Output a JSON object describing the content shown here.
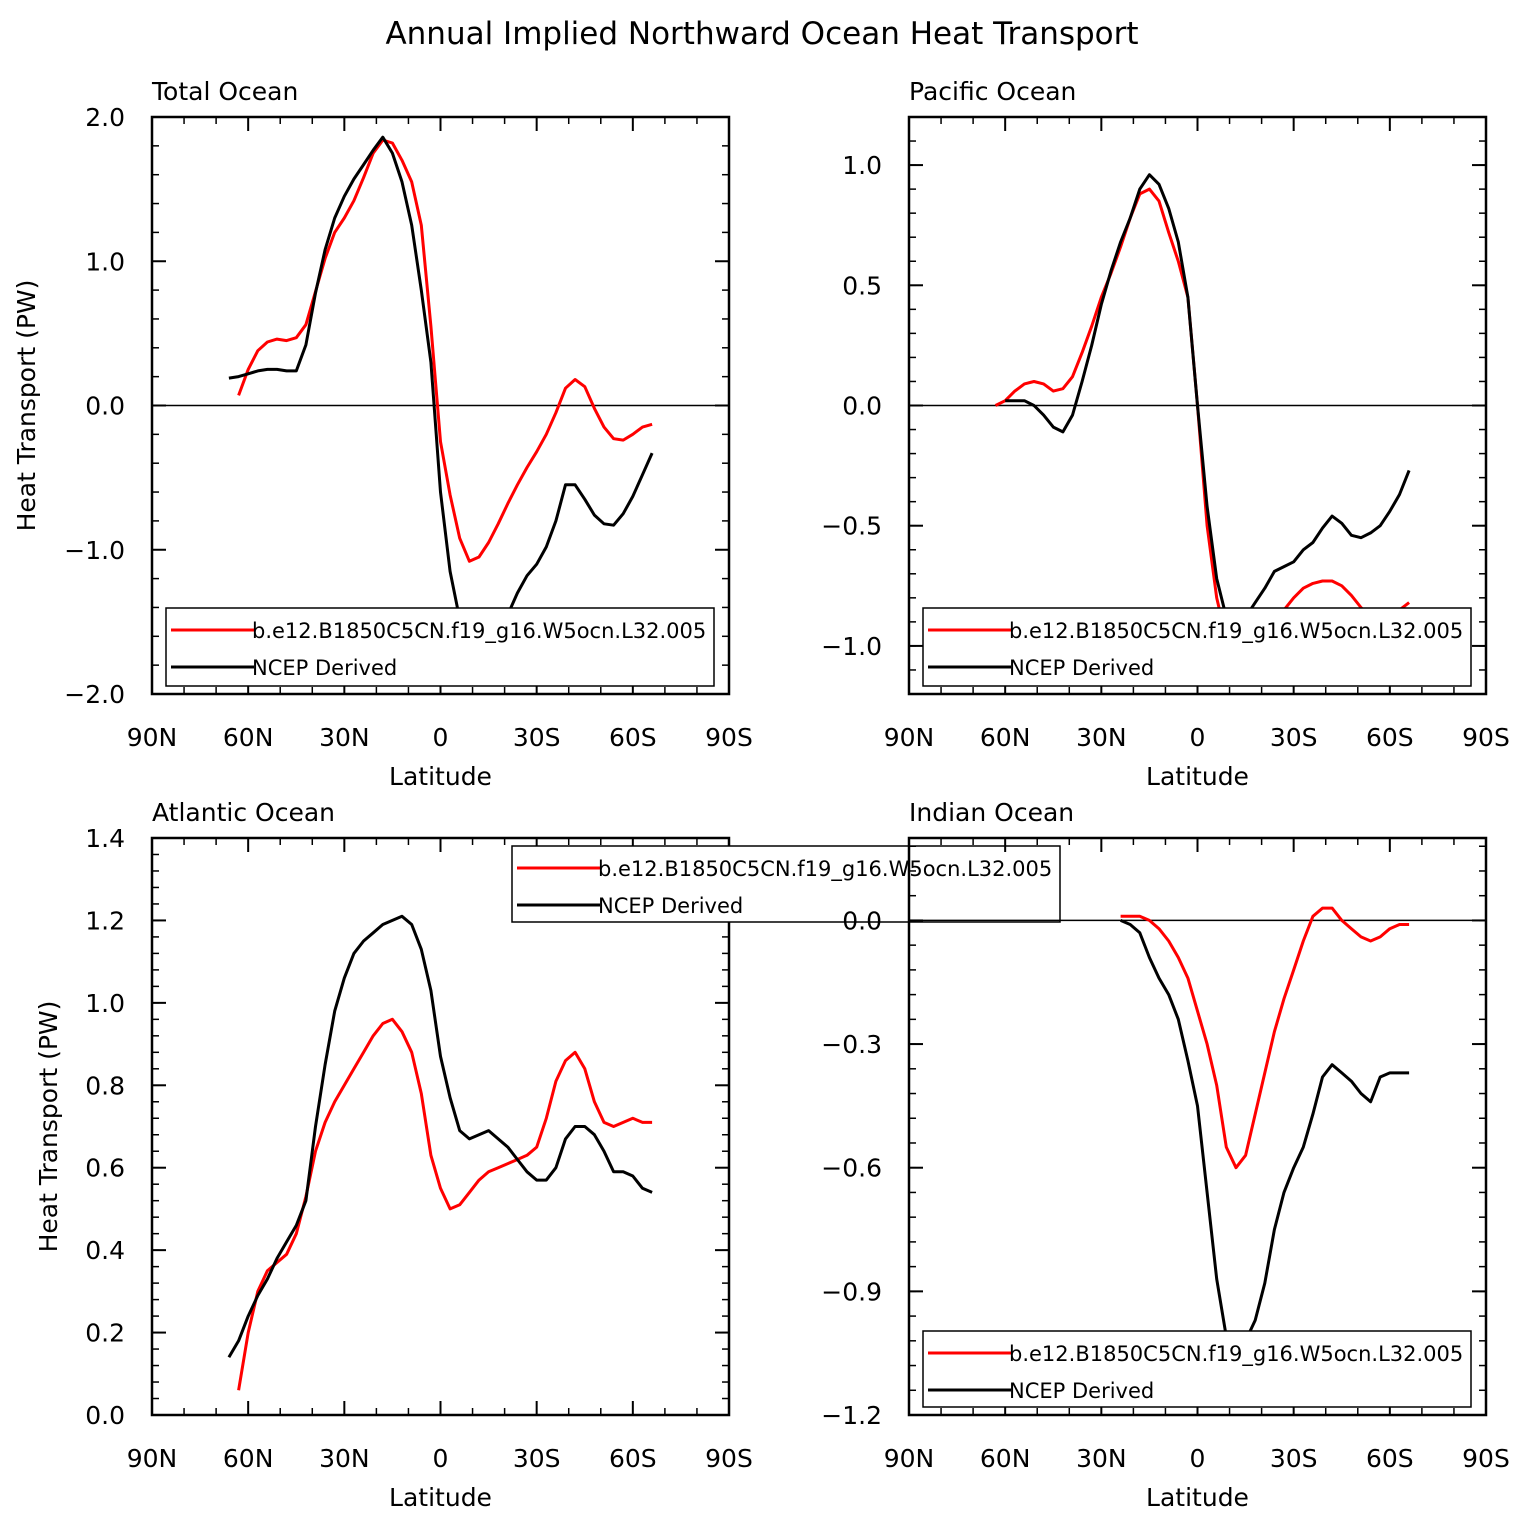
{
  "title": "Annual Implied Northward Ocean Heat Transport",
  "colors": {
    "model": "#ff0000",
    "obs": "#000000",
    "axis": "#000000",
    "background": "#ffffff"
  },
  "chart_data": [
    {
      "type": "line",
      "panel_title": "Total Ocean",
      "xlabel": "Latitude",
      "ylabel": "Heat Transport (PW)",
      "xlim": [
        90,
        -90
      ],
      "x_ticks": [
        90,
        60,
        30,
        0,
        -30,
        -60,
        -90
      ],
      "x_tick_labels": [
        "90N",
        "60N",
        "30N",
        "0",
        "30S",
        "60S",
        "90S"
      ],
      "ylim": [
        -2.0,
        2.0
      ],
      "y_ticks": [
        -2.0,
        -1.0,
        0.0,
        1.0,
        2.0
      ],
      "y_tick_labels": [
        "−2.0",
        "−1.0",
        "0.0",
        "1.0",
        "2.0"
      ],
      "zero_line": true,
      "legend_position": "bottom",
      "series": [
        {
          "name": "b.e12.B1850C5CN.f19_g16.W5ocn.L32.005",
          "color": "#ff0000",
          "x": [
            63,
            60,
            57,
            54,
            51,
            48,
            45,
            42,
            39,
            36,
            33,
            30,
            27,
            24,
            21,
            18,
            15,
            12,
            9,
            6,
            3,
            0,
            -3,
            -6,
            -9,
            -12,
            -15,
            -18,
            -21,
            -24,
            -27,
            -30,
            -33,
            -36,
            -39,
            -42,
            -45,
            -48,
            -51,
            -54,
            -57,
            -60,
            -63,
            -66
          ],
          "y": [
            0.07,
            0.25,
            0.38,
            0.44,
            0.46,
            0.45,
            0.47,
            0.56,
            0.79,
            1.02,
            1.2,
            1.3,
            1.42,
            1.58,
            1.75,
            1.84,
            1.82,
            1.7,
            1.55,
            1.25,
            0.55,
            -0.25,
            -0.62,
            -0.92,
            -1.08,
            -1.05,
            -0.95,
            -0.82,
            -0.68,
            -0.55,
            -0.43,
            -0.32,
            -0.2,
            -0.05,
            0.12,
            0.18,
            0.13,
            -0.02,
            -0.15,
            -0.23,
            -0.24,
            -0.2,
            -0.15,
            -0.13
          ]
        },
        {
          "name": "NCEP Derived",
          "color": "#000000",
          "x": [
            66,
            63,
            60,
            57,
            54,
            51,
            48,
            45,
            42,
            39,
            36,
            33,
            30,
            27,
            24,
            21,
            18,
            15,
            12,
            9,
            6,
            3,
            0,
            -3,
            -6,
            -9,
            -12,
            -15,
            -18,
            -21,
            -24,
            -27,
            -30,
            -33,
            -36,
            -39,
            -42,
            -45,
            -48,
            -51,
            -54,
            -57,
            -60,
            -63,
            -66
          ],
          "y": [
            0.19,
            0.2,
            0.22,
            0.24,
            0.25,
            0.25,
            0.24,
            0.24,
            0.42,
            0.78,
            1.08,
            1.3,
            1.45,
            1.57,
            1.67,
            1.77,
            1.86,
            1.75,
            1.55,
            1.25,
            0.8,
            0.3,
            -0.6,
            -1.15,
            -1.48,
            -1.64,
            -1.68,
            -1.62,
            -1.56,
            -1.45,
            -1.3,
            -1.18,
            -1.1,
            -0.98,
            -0.8,
            -0.55,
            -0.55,
            -0.65,
            -0.76,
            -0.82,
            -0.83,
            -0.75,
            -0.63,
            -0.48,
            -0.33
          ]
        }
      ]
    },
    {
      "type": "line",
      "panel_title": "Pacific Ocean",
      "xlabel": "Latitude",
      "ylabel": "",
      "xlim": [
        90,
        -90
      ],
      "x_ticks": [
        90,
        60,
        30,
        0,
        -30,
        -60,
        -90
      ],
      "x_tick_labels": [
        "90N",
        "60N",
        "30N",
        "0",
        "30S",
        "60S",
        "90S"
      ],
      "ylim": [
        -1.2,
        1.2
      ],
      "y_ticks": [
        -1.0,
        -0.5,
        0.0,
        0.5,
        1.0
      ],
      "y_tick_labels": [
        "−1.0",
        "−0.5",
        "0.0",
        "0.5",
        "1.0"
      ],
      "zero_line": true,
      "legend_position": "bottom",
      "series": [
        {
          "name": "b.e12.B1850C5CN.f19_g16.W5ocn.L32.005",
          "color": "#ff0000",
          "x": [
            63,
            60,
            57,
            54,
            51,
            48,
            45,
            42,
            39,
            36,
            33,
            30,
            27,
            24,
            21,
            18,
            15,
            12,
            9,
            6,
            3,
            0,
            -3,
            -6,
            -9,
            -12,
            -15,
            -18,
            -21,
            -24,
            -27,
            -30,
            -33,
            -36,
            -39,
            -42,
            -45,
            -48,
            -51,
            -54,
            -57,
            -60,
            -63,
            -66
          ],
          "y": [
            0.0,
            0.02,
            0.06,
            0.09,
            0.1,
            0.09,
            0.06,
            0.07,
            0.12,
            0.22,
            0.33,
            0.45,
            0.55,
            0.66,
            0.78,
            0.88,
            0.9,
            0.85,
            0.72,
            0.6,
            0.45,
            0.0,
            -0.5,
            -0.8,
            -0.97,
            -1.03,
            -1.04,
            -1.0,
            -0.96,
            -0.9,
            -0.85,
            -0.8,
            -0.76,
            -0.74,
            -0.73,
            -0.73,
            -0.75,
            -0.79,
            -0.84,
            -0.88,
            -0.9,
            -0.88,
            -0.85,
            -0.82
          ]
        },
        {
          "name": "NCEP Derived",
          "color": "#000000",
          "x": [
            60,
            57,
            54,
            51,
            48,
            45,
            42,
            39,
            36,
            33,
            30,
            27,
            24,
            21,
            18,
            15,
            12,
            9,
            6,
            3,
            0,
            -3,
            -6,
            -9,
            -12,
            -15,
            -18,
            -21,
            -24,
            -27,
            -30,
            -33,
            -36,
            -39,
            -42,
            -45,
            -48,
            -51,
            -54,
            -57,
            -60,
            -63,
            -66
          ],
          "y": [
            0.02,
            0.02,
            0.02,
            0.0,
            -0.04,
            -0.09,
            -0.11,
            -0.04,
            0.1,
            0.25,
            0.42,
            0.56,
            0.68,
            0.78,
            0.9,
            0.96,
            0.92,
            0.82,
            0.68,
            0.45,
            0.0,
            -0.42,
            -0.72,
            -0.88,
            -0.93,
            -0.88,
            -0.82,
            -0.76,
            -0.69,
            -0.67,
            -0.65,
            -0.6,
            -0.57,
            -0.51,
            -0.46,
            -0.49,
            -0.54,
            -0.55,
            -0.53,
            -0.5,
            -0.44,
            -0.37,
            -0.27
          ]
        }
      ]
    },
    {
      "type": "line",
      "panel_title": "Atlantic Ocean",
      "xlabel": "Latitude",
      "ylabel": "Heat Transport (PW)",
      "xlim": [
        90,
        -90
      ],
      "x_ticks": [
        90,
        60,
        30,
        0,
        -30,
        -60,
        -90
      ],
      "x_tick_labels": [
        "90N",
        "60N",
        "30N",
        "0",
        "30S",
        "60S",
        "90S"
      ],
      "ylim": [
        0.0,
        1.4
      ],
      "y_ticks": [
        0.0,
        0.2,
        0.4,
        0.6,
        0.8,
        1.0,
        1.2,
        1.4
      ],
      "y_tick_labels": [
        "0.0",
        "0.2",
        "0.4",
        "0.6",
        "0.8",
        "1.0",
        "1.2",
        "1.4"
      ],
      "zero_line": false,
      "legend_position": "top-center",
      "series": [
        {
          "name": "b.e12.B1850C5CN.f19_g16.W5ocn.L32.005",
          "color": "#ff0000",
          "x": [
            63,
            60,
            57,
            54,
            51,
            48,
            45,
            42,
            39,
            36,
            33,
            30,
            27,
            24,
            21,
            18,
            15,
            12,
            9,
            6,
            3,
            0,
            -3,
            -6,
            -9,
            -12,
            -15,
            -18,
            -21,
            -24,
            -27,
            -30,
            -33,
            -36,
            -39,
            -42,
            -45,
            -48,
            -51,
            -54,
            -57,
            -60,
            -63,
            -66
          ],
          "y": [
            0.06,
            0.2,
            0.3,
            0.35,
            0.37,
            0.39,
            0.44,
            0.53,
            0.64,
            0.71,
            0.76,
            0.8,
            0.84,
            0.88,
            0.92,
            0.95,
            0.96,
            0.93,
            0.88,
            0.78,
            0.63,
            0.55,
            0.5,
            0.51,
            0.54,
            0.57,
            0.59,
            0.6,
            0.61,
            0.62,
            0.63,
            0.65,
            0.72,
            0.81,
            0.86,
            0.88,
            0.84,
            0.76,
            0.71,
            0.7,
            0.71,
            0.72,
            0.71,
            0.71
          ]
        },
        {
          "name": "NCEP Derived",
          "color": "#000000",
          "x": [
            66,
            63,
            60,
            57,
            54,
            51,
            48,
            45,
            42,
            39,
            36,
            33,
            30,
            27,
            24,
            21,
            18,
            15,
            12,
            9,
            6,
            3,
            0,
            -3,
            -6,
            -9,
            -12,
            -15,
            -18,
            -21,
            -24,
            -27,
            -30,
            -33,
            -36,
            -39,
            -42,
            -45,
            -48,
            -51,
            -54,
            -57,
            -60,
            -63,
            -66
          ],
          "y": [
            0.14,
            0.18,
            0.24,
            0.29,
            0.33,
            0.38,
            0.42,
            0.46,
            0.52,
            0.7,
            0.85,
            0.98,
            1.06,
            1.12,
            1.15,
            1.17,
            1.19,
            1.2,
            1.21,
            1.19,
            1.13,
            1.03,
            0.87,
            0.77,
            0.69,
            0.67,
            0.68,
            0.69,
            0.67,
            0.65,
            0.62,
            0.59,
            0.57,
            0.57,
            0.6,
            0.67,
            0.7,
            0.7,
            0.68,
            0.64,
            0.59,
            0.59,
            0.58,
            0.55,
            0.54
          ]
        }
      ]
    },
    {
      "type": "line",
      "panel_title": "Indian Ocean",
      "xlabel": "Latitude",
      "ylabel": "",
      "xlim": [
        90,
        -90
      ],
      "x_ticks": [
        90,
        60,
        30,
        0,
        -30,
        -60,
        -90
      ],
      "x_tick_labels": [
        "90N",
        "60N",
        "30N",
        "0",
        "30S",
        "60S",
        "90S"
      ],
      "ylim": [
        -1.2,
        0.2
      ],
      "y_ticks": [
        -1.2,
        -0.9,
        -0.6,
        -0.3,
        0.0
      ],
      "y_tick_labels": [
        "−1.2",
        "−0.9",
        "−0.6",
        "−0.3",
        "0.0"
      ],
      "zero_line": true,
      "legend_position": "bottom",
      "series": [
        {
          "name": "b.e12.B1850C5CN.f19_g16.W5ocn.L32.005",
          "color": "#ff0000",
          "x": [
            24,
            21,
            18,
            15,
            12,
            9,
            6,
            3,
            0,
            -3,
            -6,
            -9,
            -12,
            -15,
            -18,
            -21,
            -24,
            -27,
            -30,
            -33,
            -36,
            -39,
            -42,
            -45,
            -48,
            -51,
            -54,
            -57,
            -60,
            -63,
            -66
          ],
          "y": [
            0.01,
            0.01,
            0.01,
            0.0,
            -0.02,
            -0.05,
            -0.09,
            -0.14,
            -0.22,
            -0.3,
            -0.4,
            -0.55,
            -0.6,
            -0.57,
            -0.47,
            -0.37,
            -0.27,
            -0.19,
            -0.12,
            -0.05,
            0.01,
            0.03,
            0.03,
            0.0,
            -0.02,
            -0.04,
            -0.05,
            -0.04,
            -0.02,
            -0.01,
            -0.01
          ]
        },
        {
          "name": "NCEP Derived",
          "color": "#000000",
          "x": [
            24,
            21,
            18,
            15,
            12,
            9,
            6,
            3,
            0,
            -3,
            -6,
            -9,
            -12,
            -15,
            -18,
            -21,
            -24,
            -27,
            -30,
            -33,
            -36,
            -39,
            -42,
            -45,
            -48,
            -51,
            -54,
            -57,
            -60,
            -63,
            -66
          ],
          "y": [
            0.0,
            -0.01,
            -0.03,
            -0.09,
            -0.14,
            -0.18,
            -0.24,
            -0.34,
            -0.45,
            -0.66,
            -0.87,
            -1.01,
            -1.05,
            -1.02,
            -0.97,
            -0.88,
            -0.75,
            -0.66,
            -0.6,
            -0.55,
            -0.47,
            -0.38,
            -0.35,
            -0.37,
            -0.39,
            -0.42,
            -0.44,
            -0.38,
            -0.37,
            -0.37,
            -0.37
          ]
        }
      ]
    }
  ]
}
